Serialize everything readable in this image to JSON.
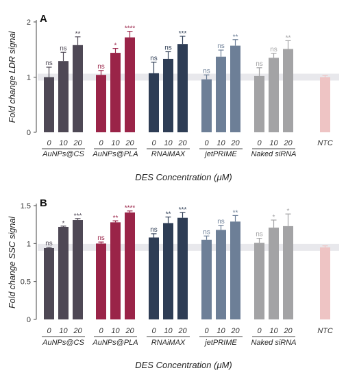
{
  "colors": {
    "AuNPs@CS": "#4e4855",
    "AuNPs@PLA": "#9a2448",
    "RNAiMAX": "#2e3d55",
    "jetPRIME": "#6d7f97",
    "Naked siRNA": "#a3a3a5",
    "NTC": "#eec4c4",
    "reference_band": "#e8e8ec"
  },
  "chart_data": [
    {
      "type": "bar",
      "panel_label": "A",
      "ylabel": "Fold change LDR signal",
      "xlabel": "DES Concentration (μM)",
      "ylim": [
        0,
        2
      ],
      "yticks": [
        "0",
        "1",
        "2"
      ],
      "reference_line": 1.0,
      "groups": [
        {
          "name": "AuNPs@CS",
          "categories": [
            "0",
            "10",
            "20"
          ],
          "values": [
            1.0,
            1.29,
            1.58
          ],
          "errors": [
            0.18,
            0.16,
            0.15
          ],
          "significance": [
            "ns",
            "ns",
            "**"
          ]
        },
        {
          "name": "AuNPs@PLA",
          "categories": [
            "0",
            "10",
            "20"
          ],
          "values": [
            1.04,
            1.44,
            1.72
          ],
          "errors": [
            0.08,
            0.08,
            0.11
          ],
          "significance": [
            "ns",
            "*",
            "****"
          ]
        },
        {
          "name": "RNAiMAX",
          "categories": [
            "0",
            "10",
            "20"
          ],
          "values": [
            1.07,
            1.33,
            1.6
          ],
          "errors": [
            0.2,
            0.13,
            0.14
          ],
          "significance": [
            "ns",
            "ns",
            "***"
          ]
        },
        {
          "name": "jetPRIME",
          "categories": [
            "0",
            "10",
            "20"
          ],
          "values": [
            0.96,
            1.37,
            1.57
          ],
          "errors": [
            0.08,
            0.12,
            0.11
          ],
          "significance": [
            "ns",
            "ns",
            "**"
          ]
        },
        {
          "name": "Naked siRNA",
          "categories": [
            "0",
            "10",
            "20"
          ],
          "values": [
            1.02,
            1.35,
            1.51
          ],
          "errors": [
            0.15,
            0.08,
            0.15
          ],
          "significance": [
            "ns",
            "ns",
            "**"
          ]
        },
        {
          "name": "NTC",
          "categories": [
            "NTC"
          ],
          "values": [
            1.0
          ],
          "errors": [
            0.03
          ],
          "significance": [
            ""
          ]
        }
      ]
    },
    {
      "type": "bar",
      "panel_label": "B",
      "ylabel": "Fold change SSC signal",
      "xlabel": "DES Concentration (μM)",
      "ylim": [
        0,
        1.5
      ],
      "yticks": [
        "0",
        "0.5",
        "1",
        "1.5"
      ],
      "reference_line": 0.95,
      "groups": [
        {
          "name": "AuNPs@CS",
          "categories": [
            "0",
            "10",
            "20"
          ],
          "values": [
            0.94,
            1.22,
            1.31
          ],
          "errors": [
            0.01,
            0.01,
            0.02
          ],
          "significance": [
            "ns",
            "*",
            "***"
          ]
        },
        {
          "name": "AuNPs@PLA",
          "categories": [
            "0",
            "10",
            "20"
          ],
          "values": [
            1.0,
            1.28,
            1.41
          ],
          "errors": [
            0.02,
            0.02,
            0.02
          ],
          "significance": [
            "ns",
            "**",
            "****"
          ]
        },
        {
          "name": "RNAiMAX",
          "categories": [
            "0",
            "10",
            "20"
          ],
          "values": [
            1.08,
            1.27,
            1.34
          ],
          "errors": [
            0.05,
            0.08,
            0.07
          ],
          "significance": [
            "ns",
            "**",
            "***"
          ]
        },
        {
          "name": "jetPRIME",
          "categories": [
            "0",
            "10",
            "20"
          ],
          "values": [
            1.05,
            1.18,
            1.29
          ],
          "errors": [
            0.05,
            0.06,
            0.08
          ],
          "significance": [
            "ns",
            "ns",
            "**"
          ]
        },
        {
          "name": "Naked siRNA",
          "categories": [
            "0",
            "10",
            "20"
          ],
          "values": [
            1.01,
            1.21,
            1.23
          ],
          "errors": [
            0.06,
            0.1,
            0.16
          ],
          "significance": [
            "ns",
            "*",
            "*"
          ]
        },
        {
          "name": "NTC",
          "categories": [
            "NTC"
          ],
          "values": [
            0.95
          ],
          "errors": [
            0.02
          ],
          "significance": [
            ""
          ]
        }
      ]
    }
  ]
}
